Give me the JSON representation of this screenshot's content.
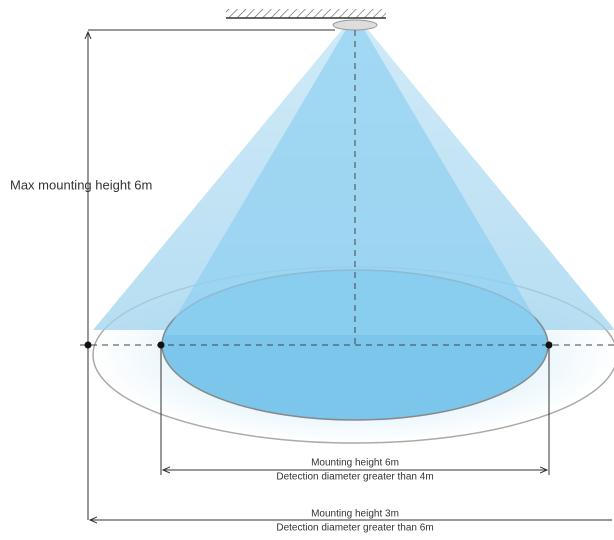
{
  "labels": {
    "max_height": "Max mounting height 6m",
    "inner_height": "Mounting height 6m",
    "inner_diameter": "Detection diameter greater than 4m",
    "outer_height": "Mounting height 3m",
    "outer_diameter": "Detection diameter greater than 6m"
  }
}
